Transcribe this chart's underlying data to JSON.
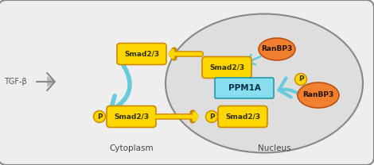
{
  "fig_width": 4.7,
  "fig_height": 2.08,
  "dpi": 100,
  "bg_color": "#ffffff",
  "cell_bg": "#eeeeee",
  "nucleus_bg": "#dedede",
  "smad_fill": "#FFD700",
  "smad_edge": "#CC8800",
  "ranbp_fill": "#F08030",
  "ranbp_edge": "#C05010",
  "ppm_fill": "#88DDEE",
  "ppm_edge": "#2299AA",
  "arrow_blue": "#66CCDD",
  "arrow_yellow": "#FFD700",
  "arrow_yellow_edge": "#CC8800",
  "tgf_color": "#555555",
  "label_color": "#444444",
  "label_cytoplasm": "Cytoplasm",
  "label_nucleus": "Nucleus",
  "label_tgf": "TGF-β"
}
